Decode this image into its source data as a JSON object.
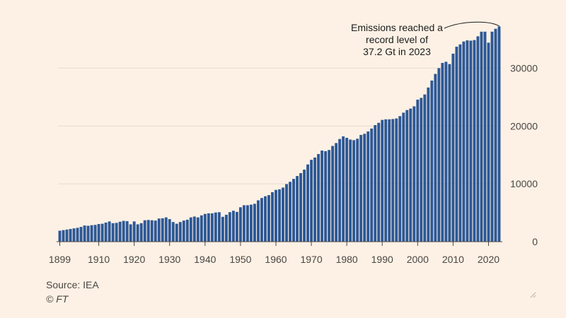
{
  "chart_data": {
    "type": "bar",
    "title": "",
    "xlabel": "",
    "ylabel": "",
    "ylim": [
      0,
      37500
    ],
    "y_axis_position": "right",
    "grid": "horizontal",
    "bar_color": "#2d5895",
    "background": "#fdf1e5",
    "x_ticks": [
      "1899",
      "1910",
      "1920",
      "1930",
      "1940",
      "1950",
      "1960",
      "1970",
      "1980",
      "1990",
      "2000",
      "2010",
      "2020"
    ],
    "y_ticks": [
      "0",
      "10000",
      "20000",
      "30000"
    ],
    "x": [
      1899,
      1900,
      1901,
      1902,
      1903,
      1904,
      1905,
      1906,
      1907,
      1908,
      1909,
      1910,
      1911,
      1912,
      1913,
      1914,
      1915,
      1916,
      1917,
      1918,
      1919,
      1920,
      1921,
      1922,
      1923,
      1924,
      1925,
      1926,
      1927,
      1928,
      1929,
      1930,
      1931,
      1932,
      1933,
      1934,
      1935,
      1936,
      1937,
      1938,
      1939,
      1940,
      1941,
      1942,
      1943,
      1944,
      1945,
      1946,
      1947,
      1948,
      1949,
      1950,
      1951,
      1952,
      1953,
      1954,
      1955,
      1956,
      1957,
      1958,
      1959,
      1960,
      1961,
      1962,
      1963,
      1964,
      1965,
      1966,
      1967,
      1968,
      1969,
      1970,
      1971,
      1972,
      1973,
      1974,
      1975,
      1976,
      1977,
      1978,
      1979,
      1980,
      1981,
      1982,
      1983,
      1984,
      1985,
      1986,
      1987,
      1988,
      1989,
      1990,
      1991,
      1992,
      1993,
      1994,
      1995,
      1996,
      1997,
      1998,
      1999,
      2000,
      2001,
      2002,
      2003,
      2004,
      2005,
      2006,
      2007,
      2008,
      2009,
      2010,
      2011,
      2012,
      2013,
      2014,
      2015,
      2016,
      2017,
      2018,
      2019,
      2020,
      2021,
      2022,
      2023
    ],
    "values": [
      1900,
      2000,
      2100,
      2200,
      2300,
      2400,
      2550,
      2800,
      2750,
      2850,
      2900,
      3050,
      3100,
      3300,
      3500,
      3200,
      3250,
      3450,
      3600,
      3550,
      3000,
      3500,
      3000,
      3200,
      3700,
      3750,
      3700,
      3650,
      4000,
      4050,
      4200,
      3900,
      3400,
      3100,
      3400,
      3650,
      3800,
      4200,
      4350,
      4200,
      4550,
      4800,
      4900,
      4900,
      5050,
      5100,
      4300,
      4650,
      5100,
      5350,
      5150,
      5950,
      6300,
      6300,
      6400,
      6550,
      7150,
      7550,
      7850,
      8050,
      8550,
      8950,
      9050,
      9350,
      9950,
      10350,
      10850,
      11350,
      11850,
      12450,
      13350,
      14150,
      14550,
      15150,
      15750,
      15650,
      15850,
      16550,
      17050,
      17750,
      18200,
      17950,
      17650,
      17550,
      17800,
      18450,
      18650,
      19050,
      19550,
      20150,
      20550,
      21050,
      21150,
      21150,
      21200,
      21300,
      21700,
      22300,
      22750,
      23000,
      23400,
      24550,
      24850,
      25450,
      26650,
      27850,
      29000,
      30000,
      30900,
      31100,
      30700,
      32500,
      33700,
      34100,
      34600,
      34800,
      34750,
      34850,
      35500,
      36300,
      36300,
      34400,
      36300,
      36800,
      37200
    ],
    "annotations": [
      {
        "lines": [
          "Emissions reached a",
          "record level of",
          "37.2 Gt in 2023"
        ],
        "target_year": 2023
      }
    ]
  },
  "footer": {
    "source": "Source: IEA",
    "credit": "© FT"
  }
}
